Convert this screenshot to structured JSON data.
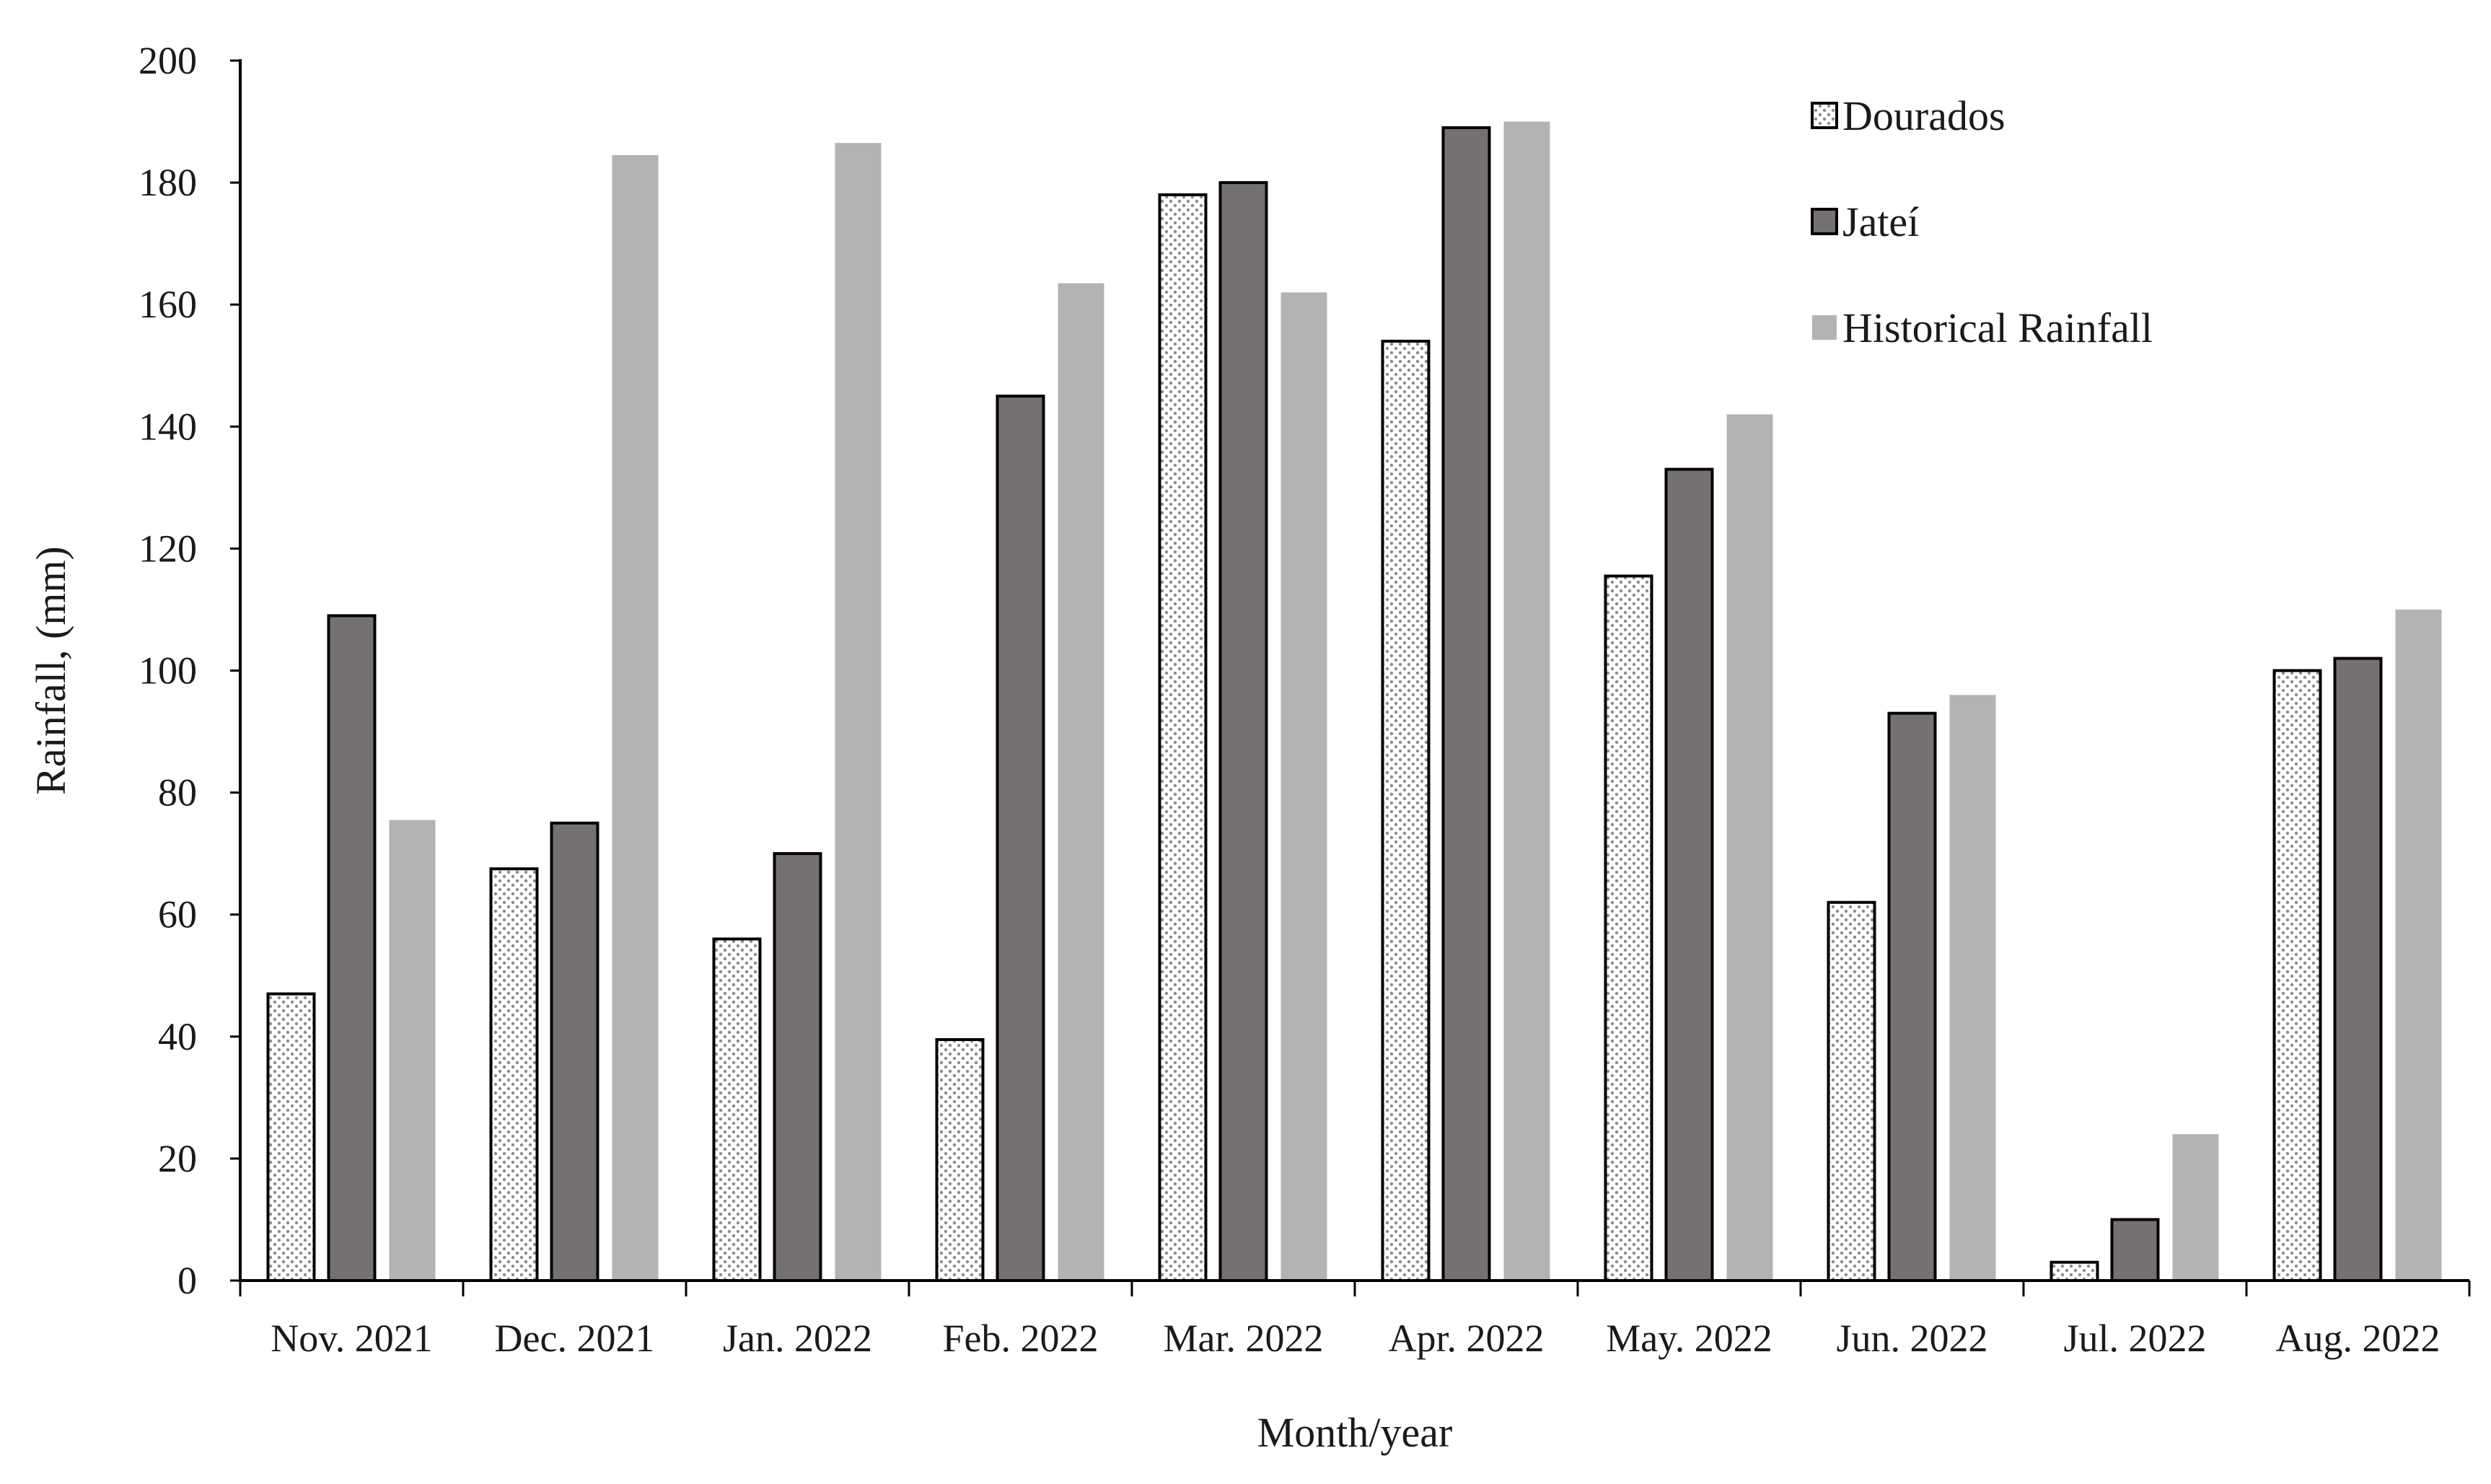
{
  "chart_data": {
    "type": "bar",
    "xlabel": "Month/year",
    "ylabel": "Rainfall, (mm)",
    "ylim": [
      0,
      200
    ],
    "yticks": [
      0,
      20,
      40,
      60,
      80,
      100,
      120,
      140,
      160,
      180,
      200
    ],
    "categories": [
      "Nov. 2021",
      "Dec. 2021",
      "Jan. 2022",
      "Feb. 2022",
      "Mar. 2022",
      "Apr. 2022",
      "May. 2022",
      "Jun. 2022",
      "Jul. 2022",
      "Aug. 2022"
    ],
    "series": [
      {
        "name": "Dourados",
        "values": [
          47,
          67.5,
          56,
          39.5,
          178,
          154,
          115.5,
          62,
          3,
          100
        ],
        "color": "#ffffff",
        "pattern": "dots",
        "outline": true
      },
      {
        "name": "Jateí",
        "values": [
          109,
          75,
          70,
          145,
          180,
          189,
          133,
          93,
          10,
          102
        ],
        "color": "#767171",
        "outline": true
      },
      {
        "name": "Historical Rainfall",
        "values": [
          75.5,
          184.5,
          186.5,
          163.5,
          162,
          190,
          142,
          96,
          24,
          110
        ],
        "color": "#b3b3b3",
        "outline": false
      }
    ],
    "grid": false,
    "legend_position": "top-right"
  }
}
